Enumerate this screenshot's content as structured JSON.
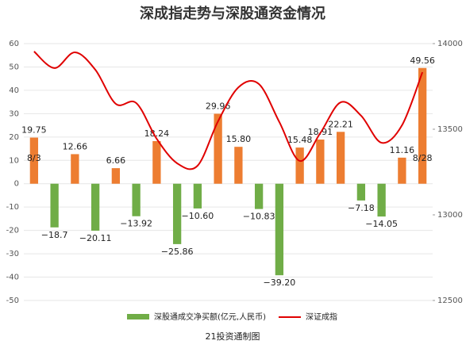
{
  "chart_data": {
    "type": "bar-line",
    "title": "深成指走势与深股通资金情况",
    "source": "21投资通制图",
    "categories": [
      "8/3",
      null,
      null,
      null,
      null,
      null,
      null,
      null,
      null,
      null,
      null,
      null,
      null,
      null,
      null,
      null,
      null,
      null,
      null,
      "8/28"
    ],
    "series": [
      {
        "name": "深股通成交净买额(亿元,人民币)",
        "type": "bar",
        "pos_color": "#ed7d31",
        "neg_color": "#70ad47",
        "values": [
          19.75,
          -18.7,
          12.66,
          -20.11,
          6.66,
          -13.92,
          18.24,
          -25.86,
          -10.6,
          29.96,
          15.8,
          -10.83,
          -39.2,
          15.48,
          18.91,
          22.21,
          -7.18,
          -14.05,
          11.16,
          49.56
        ],
        "value_labels": [
          "19.75",
          "−18.7",
          "12.66",
          "−20.11",
          "6.66",
          "−13.92",
          "18.24",
          "−25.86",
          "−10.60",
          "29.96",
          "15.80",
          "−10.83",
          "−39.20",
          "15.48",
          "18.91",
          "22.21",
          "−7.18",
          "−14.05",
          "11.16",
          "49.56"
        ]
      },
      {
        "name": "深证成指",
        "type": "line",
        "axis": "y2",
        "color": "#e00000",
        "values": [
          13954,
          13857,
          13949,
          13847,
          13648,
          13653,
          13444,
          13301,
          13287,
          13546,
          13745,
          13764,
          13542,
          13315,
          13477,
          13657,
          13579,
          13421,
          13523,
          13833
        ]
      }
    ],
    "ylim": [
      -50,
      60
    ],
    "yticks": [
      -50,
      -40,
      -30,
      -20,
      -10,
      0,
      10,
      20,
      30,
      40,
      50,
      60
    ],
    "y2lim": [
      12500,
      14000
    ],
    "y2ticks": [
      12500,
      13000,
      13500,
      14000
    ],
    "grid": true
  }
}
